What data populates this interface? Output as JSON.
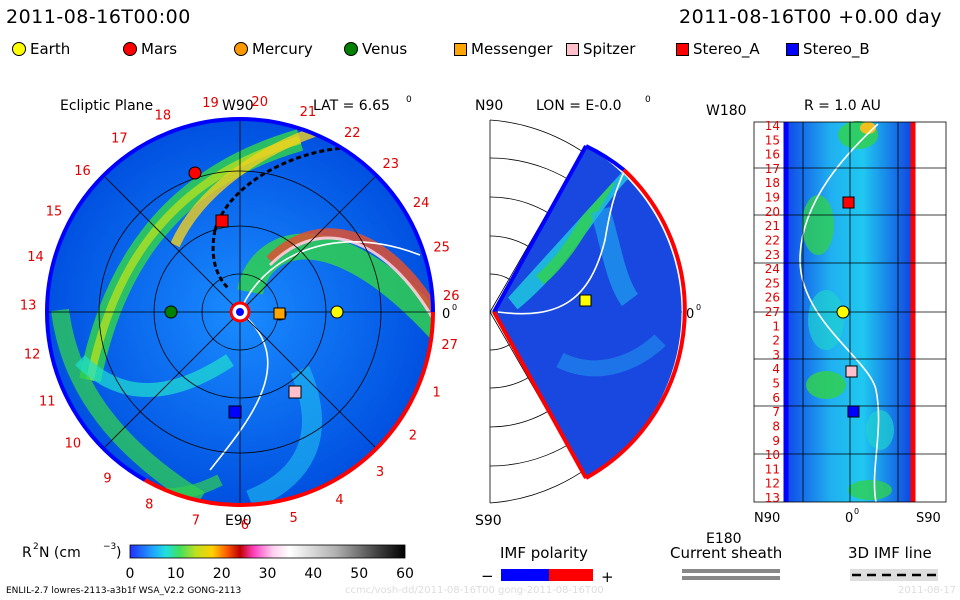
{
  "header": {
    "left_time": "2011-08-16T00:00",
    "right_time": "2011-08-16T00 +0.00 day"
  },
  "legend": [
    {
      "name": "Earth",
      "shape": "circle",
      "color": "#ffff00"
    },
    {
      "name": "Mars",
      "shape": "circle",
      "color": "#ff0000"
    },
    {
      "name": "Mercury",
      "shape": "circle",
      "color": "#ff9900"
    },
    {
      "name": "Venus",
      "shape": "circle",
      "color": "#008000"
    },
    {
      "name": "Messenger",
      "shape": "square",
      "color": "#ffa500"
    },
    {
      "name": "Spitzer",
      "shape": "square",
      "color": "#ffc0cb"
    },
    {
      "name": "Stereo_A",
      "shape": "square",
      "color": "#ff0000"
    },
    {
      "name": "Stereo_B",
      "shape": "square",
      "color": "#0000ff"
    }
  ],
  "panels": {
    "ecliptic": {
      "title": "Ecliptic Plane",
      "top_label": "W90",
      "bottom_label": "E90",
      "right_label": "0",
      "right_label_sup": "0",
      "lat_label": "LAT = 6.65",
      "lat_sup": "0",
      "rotations": [
        "19",
        "20",
        "21",
        "22",
        "23",
        "24",
        "25",
        "26",
        "27",
        "1",
        "2",
        "3",
        "4",
        "5",
        "6",
        "7",
        "8",
        "9",
        "10",
        "11",
        "12",
        "13",
        "14",
        "15",
        "16",
        "17",
        "18"
      ]
    },
    "meridional": {
      "top_label": "N90",
      "bottom_label": "S90",
      "lon_label": "LON = E-0.0",
      "lon_sup": "0",
      "right_label": "0",
      "right_label_sup": "0"
    },
    "radial": {
      "r_label": "R = 1.0 AU",
      "top_left": "W180",
      "bottom_left": "E180",
      "bottom_axis": [
        "N90",
        "0",
        "S90"
      ],
      "bottom_axis_sup": "0",
      "rotations": [
        "14",
        "15",
        "16",
        "17",
        "18",
        "19",
        "20",
        "21",
        "22",
        "23",
        "24",
        "25",
        "26",
        "27",
        "1",
        "2",
        "3",
        "4",
        "5",
        "6",
        "7",
        "8",
        "9",
        "10",
        "11",
        "12",
        "13"
      ]
    }
  },
  "colorbar": {
    "label": "R",
    "label_sup": "2",
    "label_rest": " N (cm",
    "label_exp": "−3",
    "label_close": ")",
    "ticks": [
      "0",
      "10",
      "20",
      "30",
      "40",
      "50",
      "60"
    ]
  },
  "imf_polarity": {
    "title": "IMF polarity",
    "minus": "−",
    "plus": "+",
    "neg_color": "#0000ff",
    "pos_color": "#ff0000"
  },
  "current_sheath": {
    "title": "Current sheath"
  },
  "imf_line": {
    "title": "3D IMF line"
  },
  "footer": {
    "left": "ENLIL-2.7 lowres-2113-a3b1f WSA_V2.2 GONG-2113",
    "watermark": "ccmc/vosh-dd/2011-08-16T00 gong-2011-08-16T00",
    "right": "2011-08-17"
  }
}
